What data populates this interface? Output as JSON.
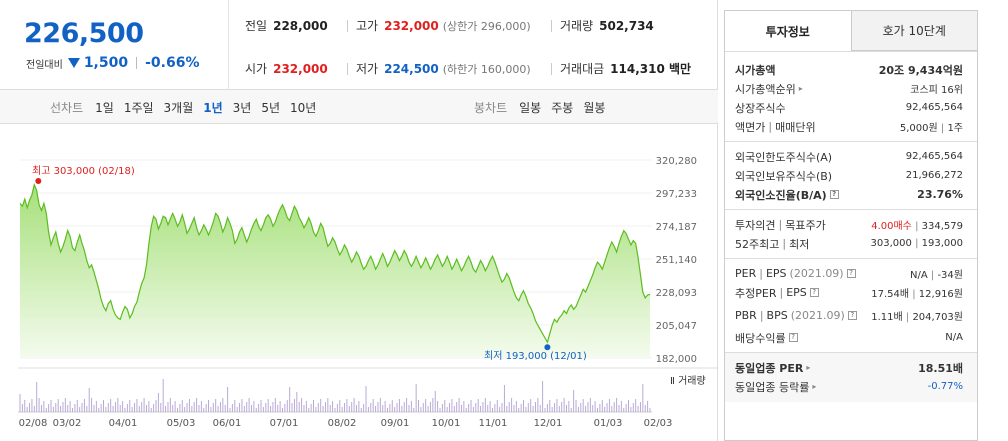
{
  "price": {
    "current": "226,500",
    "change_label": "전일대비",
    "change_amount": "1,500",
    "change_pct": "-0.66%"
  },
  "summary": {
    "prev": {
      "label": "전일",
      "value": "228,000"
    },
    "high": {
      "label": "고가",
      "value": "232,000",
      "sub": "(상한가 296,000)"
    },
    "volume": {
      "label": "거래량",
      "value": "502,734"
    },
    "open": {
      "label": "시가",
      "value": "232,000"
    },
    "low": {
      "label": "저가",
      "value": "224,500",
      "sub": "(하한가 160,000)"
    },
    "amount": {
      "label": "거래대금",
      "value": "114,310 백만"
    }
  },
  "periods": {
    "label": "선차트",
    "options": [
      "1일",
      "1주일",
      "3개월",
      "1년",
      "3년",
      "5년",
      "10년"
    ],
    "selected": "1년"
  },
  "candles": {
    "label": "봉차트",
    "options": [
      "일봉",
      "주봉",
      "월봉"
    ]
  },
  "chart_data": {
    "type": "area",
    "y_ticks": [
      "320,280",
      "297,233",
      "274,187",
      "251,140",
      "228,093",
      "205,047",
      "182,000"
    ],
    "ylim": [
      182000,
      320280
    ],
    "x_ticks": [
      "02/08",
      "03/02",
      "04/01",
      "05/03",
      "06/01",
      "07/01",
      "08/02",
      "09/01",
      "10/01",
      "11/01",
      "12/01",
      "01/03",
      "02/03"
    ],
    "high_annotation": "최고 303,000 (02/18)",
    "low_annotation": "최저 193,000 (12/01)",
    "volume_label": "거래량",
    "values": [
      290000,
      288000,
      293000,
      287000,
      292000,
      296000,
      303000,
      299000,
      289000,
      285000,
      290000,
      283000,
      270000,
      261000,
      266000,
      270000,
      262000,
      256000,
      260000,
      265000,
      271000,
      267000,
      259000,
      257000,
      263000,
      268000,
      262000,
      257000,
      250000,
      245000,
      247000,
      242000,
      236000,
      230000,
      223000,
      218000,
      215000,
      220000,
      222000,
      216000,
      212000,
      210000,
      209000,
      214000,
      218000,
      216000,
      210000,
      213000,
      218000,
      221000,
      228000,
      234000,
      238000,
      247000,
      262000,
      274000,
      281000,
      279000,
      272000,
      276000,
      281000,
      280000,
      275000,
      279000,
      283000,
      279000,
      274000,
      277000,
      282000,
      276000,
      269000,
      272000,
      276000,
      280000,
      273000,
      268000,
      271000,
      275000,
      272000,
      268000,
      272000,
      277000,
      283000,
      281000,
      276000,
      270000,
      274000,
      280000,
      276000,
      271000,
      262000,
      265000,
      270000,
      273000,
      268000,
      263000,
      267000,
      272000,
      276000,
      279000,
      274000,
      271000,
      275000,
      280000,
      282000,
      279000,
      274000,
      277000,
      282000,
      286000,
      289000,
      285000,
      280000,
      278000,
      283000,
      288000,
      285000,
      280000,
      277000,
      273000,
      276000,
      280000,
      276000,
      270000,
      267000,
      271000,
      276000,
      273000,
      266000,
      260000,
      262000,
      266000,
      263000,
      258000,
      254000,
      257000,
      261000,
      258000,
      253000,
      249000,
      252000,
      256000,
      253000,
      248000,
      244000,
      246000,
      250000,
      253000,
      249000,
      244000,
      247000,
      251000,
      255000,
      251000,
      246000,
      249000,
      253000,
      257000,
      254000,
      250000,
      253000,
      257000,
      254000,
      249000,
      246000,
      249000,
      253000,
      249000,
      245000,
      248000,
      252000,
      248000,
      244000,
      247000,
      251000,
      254000,
      250000,
      246000,
      249000,
      253000,
      249000,
      244000,
      247000,
      251000,
      247000,
      243000,
      246000,
      250000,
      253000,
      249000,
      244000,
      242000,
      246000,
      250000,
      247000,
      243000,
      246000,
      250000,
      253000,
      249000,
      244000,
      239000,
      235000,
      237000,
      241000,
      238000,
      233000,
      228000,
      224000,
      222000,
      226000,
      229000,
      225000,
      220000,
      217000,
      213000,
      208000,
      205000,
      202000,
      199000,
      196000,
      193000,
      199000,
      205000,
      209000,
      207000,
      210000,
      212000,
      215000,
      213000,
      217000,
      219000,
      216000,
      218000,
      222000,
      226000,
      230000,
      228000,
      232000,
      236000,
      240000,
      245000,
      249000,
      247000,
      244000,
      249000,
      254000,
      259000,
      263000,
      260000,
      256000,
      262000,
      267000,
      271000,
      269000,
      265000,
      261000,
      264000,
      262000,
      252000,
      240000,
      228000,
      224000,
      226000,
      226500
    ]
  },
  "info_tabs": [
    "투자정보",
    "호가 10단계"
  ],
  "info": {
    "market_cap": {
      "label": "시가총액",
      "value": "20조 9,434억원"
    },
    "market_cap_rank": {
      "label": "시가총액순위",
      "value": "코스피 16위"
    },
    "shares": {
      "label": "상장주식수",
      "value": "92,465,564"
    },
    "par": {
      "label": "액면가",
      "label2": "매매단위",
      "value": "5,000원",
      "value2": "1주"
    },
    "foreign_limit": {
      "label": "외국인한도주식수(A)",
      "value": "92,465,564"
    },
    "foreign_hold": {
      "label": "외국인보유주식수(B)",
      "value": "21,966,272"
    },
    "foreign_ratio": {
      "label": "외국인소진율(B/A)",
      "value": "23.76%"
    },
    "opinion": {
      "label": "투자의견",
      "label2": "목표주가",
      "value": "4.00매수",
      "value2": "334,579"
    },
    "wk52": {
      "label": "52주최고",
      "label2": "최저",
      "value": "303,000",
      "value2": "193,000"
    },
    "per": {
      "label": "PER",
      "label2": "EPS",
      "year": "(2021.09)",
      "value": "N/A",
      "value2": "-34원"
    },
    "est_per": {
      "label": "추정PER",
      "label2": "EPS",
      "value": "17.54배",
      "value2": "12,916원"
    },
    "pbr": {
      "label": "PBR",
      "label2": "BPS",
      "year": "(2021.09)",
      "value": "1.11배",
      "value2": "204,703원"
    },
    "dividend": {
      "label": "배당수익률",
      "value": "N/A"
    },
    "sector_per": {
      "label": "동일업종 PER",
      "value": "18.51배"
    },
    "sector_rate": {
      "label": "동일업종 등락률",
      "value": "-0.77%"
    }
  }
}
